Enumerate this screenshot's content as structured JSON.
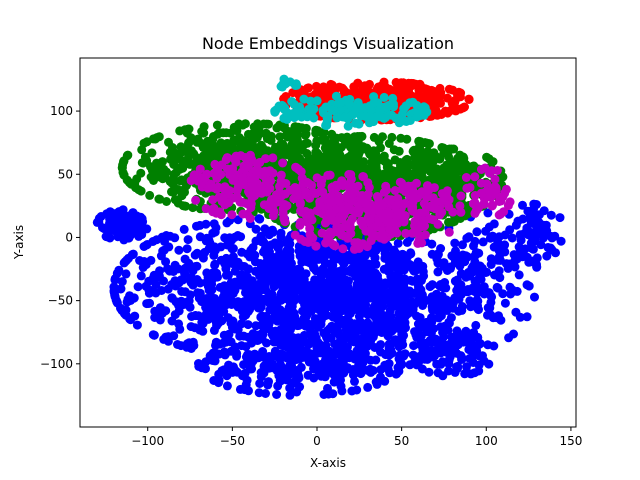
{
  "chart_data": {
    "type": "scatter",
    "title": "Node Embeddings Visualization",
    "xlabel": "X-axis",
    "ylabel": "Y-axis",
    "xlim": [
      -140,
      153
    ],
    "ylim": [
      -150,
      142
    ],
    "xticks": [
      -100,
      -50,
      0,
      50,
      100,
      150
    ],
    "yticks": [
      -100,
      -50,
      0,
      50,
      100
    ],
    "xtick_labels": [
      "−100",
      "−50",
      "0",
      "50",
      "100",
      "150"
    ],
    "ytick_labels": [
      "−100",
      "−50",
      "0",
      "50",
      "100"
    ],
    "grid": false,
    "legend": "none",
    "series": [
      {
        "color": "#0000ff",
        "clusters": [
          {
            "cx": -30,
            "cy": -40,
            "rx": 90,
            "ry": 55,
            "n": 900
          },
          {
            "cx": 30,
            "cy": -50,
            "rx": 65,
            "ry": 55,
            "n": 600
          },
          {
            "cx": -10,
            "cy": -100,
            "rx": 60,
            "ry": 25,
            "n": 250
          },
          {
            "cx": -115,
            "cy": 10,
            "rx": 15,
            "ry": 12,
            "n": 90
          },
          {
            "cx": 100,
            "cy": -30,
            "rx": 30,
            "ry": 55,
            "n": 180
          },
          {
            "cx": 130,
            "cy": 5,
            "rx": 15,
            "ry": 25,
            "n": 60
          },
          {
            "cx": 80,
            "cy": -90,
            "rx": 25,
            "ry": 20,
            "n": 90
          }
        ]
      },
      {
        "color": "#008000",
        "clusters": [
          {
            "cx": -40,
            "cy": 55,
            "rx": 75,
            "ry": 35,
            "n": 700
          },
          {
            "cx": 30,
            "cy": 40,
            "rx": 70,
            "ry": 40,
            "n": 650
          },
          {
            "cx": 80,
            "cy": 45,
            "rx": 30,
            "ry": 25,
            "n": 180
          }
        ]
      },
      {
        "color": "#bf00bf",
        "clusters": [
          {
            "cx": -40,
            "cy": 40,
            "rx": 35,
            "ry": 25,
            "n": 160
          },
          {
            "cx": 15,
            "cy": 20,
            "rx": 35,
            "ry": 30,
            "n": 220
          },
          {
            "cx": 55,
            "cy": 20,
            "rx": 30,
            "ry": 25,
            "n": 130
          },
          {
            "cx": 100,
            "cy": 35,
            "rx": 15,
            "ry": 20,
            "n": 50
          }
        ]
      },
      {
        "color": "#ff0000",
        "clusters": [
          {
            "cx": 35,
            "cy": 108,
            "rx": 55,
            "ry": 15,
            "n": 420
          }
        ]
      },
      {
        "color": "#00bfbf",
        "clusters": [
          {
            "cx": 20,
            "cy": 100,
            "rx": 45,
            "ry": 12,
            "n": 140
          },
          {
            "cx": -15,
            "cy": 122,
            "rx": 8,
            "ry": 4,
            "n": 10
          }
        ]
      }
    ]
  }
}
